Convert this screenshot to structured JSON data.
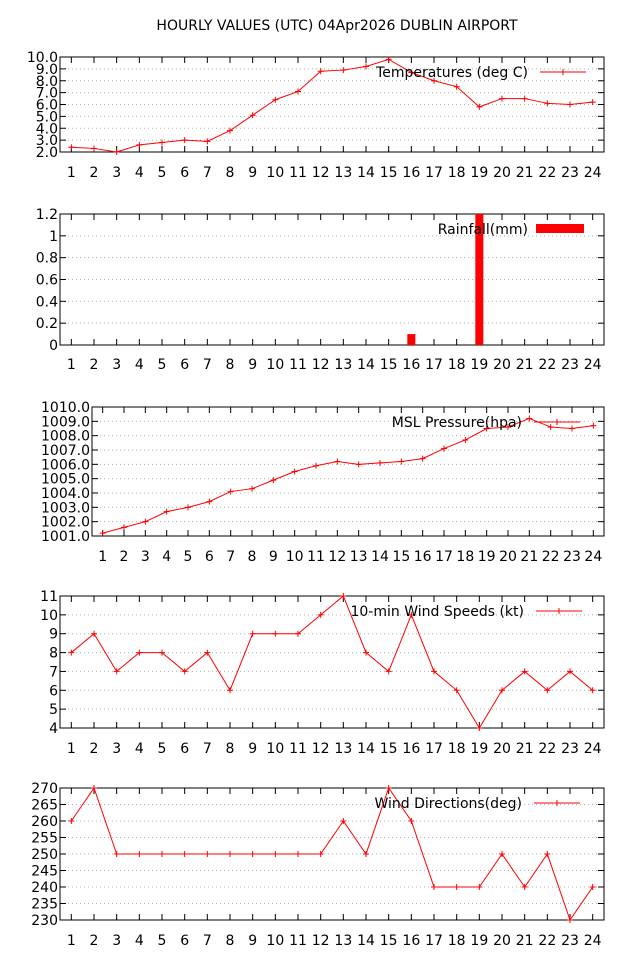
{
  "page_title": "HOURLY VALUES (UTC) 04Apr2026  DUBLIN AIRPORT",
  "chart_data": [
    {
      "type": "line",
      "name": "temperature",
      "x": [
        1,
        2,
        3,
        4,
        5,
        6,
        7,
        8,
        9,
        10,
        11,
        12,
        13,
        14,
        15,
        16,
        17,
        18,
        19,
        20,
        21,
        22,
        23,
        24
      ],
      "series": [
        {
          "name": "Temperatures (deg C)",
          "color": "#ff0000",
          "values": [
            2.4,
            2.3,
            2.0,
            2.6,
            2.8,
            3.0,
            2.9,
            3.8,
            5.1,
            6.4,
            7.1,
            8.8,
            8.9,
            9.2,
            9.8,
            8.7,
            8.0,
            7.5,
            5.8,
            6.5,
            6.5,
            6.1,
            6.0,
            6.2
          ]
        }
      ],
      "ylim": [
        2.0,
        10.0
      ],
      "yticks": [
        "2.0",
        "3.0",
        "4.0",
        "5.0",
        "6.0",
        "7.0",
        "8.0",
        "9.0",
        "10.0"
      ],
      "grid": true,
      "legend": "top-right"
    },
    {
      "type": "bar",
      "name": "rainfall",
      "x": [
        1,
        2,
        3,
        4,
        5,
        6,
        7,
        8,
        9,
        10,
        11,
        12,
        13,
        14,
        15,
        16,
        17,
        18,
        19,
        20,
        21,
        22,
        23,
        24
      ],
      "series": [
        {
          "name": "Rainfall(mm)",
          "color": "#ff0000",
          "values": [
            0,
            0,
            0,
            0,
            0,
            0,
            0,
            0,
            0,
            0,
            0,
            0,
            0,
            0,
            0,
            0.1,
            0,
            0,
            1.2,
            0,
            0,
            0,
            0,
            0
          ]
        }
      ],
      "ylim": [
        0,
        1.2
      ],
      "yticks": [
        "0",
        "0.2",
        "0.4",
        "0.6",
        "0.8",
        "1",
        "1.2"
      ],
      "grid": true,
      "legend": "top-right"
    },
    {
      "type": "line",
      "name": "pressure",
      "x": [
        1,
        2,
        3,
        4,
        5,
        6,
        7,
        8,
        9,
        10,
        11,
        12,
        13,
        14,
        15,
        16,
        17,
        18,
        19,
        20,
        21,
        22,
        23,
        24
      ],
      "series": [
        {
          "name": "MSL Pressure(hpa)",
          "color": "#ff0000",
          "values": [
            1001.2,
            1001.6,
            1002.0,
            1002.7,
            1003.0,
            1003.4,
            1004.1,
            1004.3,
            1004.9,
            1005.5,
            1005.9,
            1006.2,
            1006.0,
            1006.1,
            1006.2,
            1006.4,
            1007.1,
            1007.7,
            1008.5,
            1008.6,
            1009.2,
            1008.6,
            1008.5,
            1008.7
          ]
        }
      ],
      "ylim": [
        1001.0,
        1010.0
      ],
      "yticks": [
        "1001.0",
        "1002.0",
        "1003.0",
        "1004.0",
        "1005.0",
        "1006.0",
        "1007.0",
        "1008.0",
        "1009.0",
        "1010.0"
      ],
      "grid": true,
      "legend": "top-right"
    },
    {
      "type": "line",
      "name": "wind-speed",
      "x": [
        1,
        2,
        3,
        4,
        5,
        6,
        7,
        8,
        9,
        10,
        11,
        12,
        13,
        14,
        15,
        16,
        17,
        18,
        19,
        20,
        21,
        22,
        23,
        24
      ],
      "series": [
        {
          "name": "10-min Wind Speeds (kt)",
          "color": "#ff0000",
          "values": [
            8,
            9,
            7,
            8,
            8,
            7,
            8,
            6,
            9,
            9,
            9,
            10,
            11,
            8,
            7,
            10,
            7,
            6,
            4,
            6,
            7,
            6,
            7,
            6
          ]
        }
      ],
      "ylim": [
        4,
        11
      ],
      "yticks": [
        "4",
        "5",
        "6",
        "7",
        "8",
        "9",
        "10",
        "11"
      ],
      "grid": true,
      "legend": "top-right"
    },
    {
      "type": "line",
      "name": "wind-direction",
      "x": [
        1,
        2,
        3,
        4,
        5,
        6,
        7,
        8,
        9,
        10,
        11,
        12,
        13,
        14,
        15,
        16,
        17,
        18,
        19,
        20,
        21,
        22,
        23,
        24
      ],
      "series": [
        {
          "name": "Wind Directions(deg)",
          "color": "#ff0000",
          "values": [
            260,
            270,
            250,
            250,
            250,
            250,
            250,
            250,
            250,
            250,
            250,
            250,
            260,
            250,
            270,
            260,
            240,
            240,
            240,
            250,
            240,
            250,
            230,
            240
          ]
        }
      ],
      "ylim": [
        230,
        270
      ],
      "yticks": [
        "230",
        "235",
        "240",
        "245",
        "250",
        "255",
        "260",
        "265",
        "270"
      ],
      "grid": true,
      "legend": "top-right"
    }
  ]
}
